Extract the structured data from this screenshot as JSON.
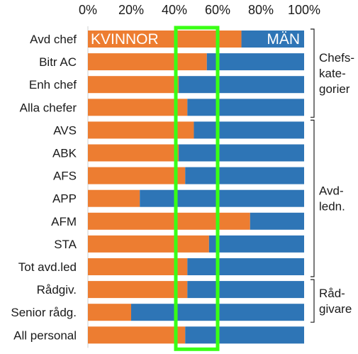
{
  "chart_data": {
    "type": "bar",
    "orientation": "horizontal",
    "stacked": true,
    "xlim": [
      0,
      100
    ],
    "x_ticks": [
      "0%",
      "20%",
      "40%",
      "60%",
      "80%",
      "100%"
    ],
    "x_tick_values": [
      0,
      20,
      40,
      60,
      80,
      100
    ],
    "categories": [
      "Avd chef",
      "Bitr AC",
      "Enh chef",
      "Alla chefer",
      "AVS",
      "ABK",
      "AFS",
      "APP",
      "AFM",
      "STA",
      "Tot avd.led",
      "Rådgiv.",
      "Senior rådg.",
      "All personal"
    ],
    "series": [
      {
        "name": "KVINNOR",
        "color": "#ED7D31",
        "values": [
          71,
          55,
          42,
          46,
          49,
          42,
          45,
          24,
          75,
          56,
          46,
          46,
          20,
          45
        ]
      },
      {
        "name": "MÄN",
        "color": "#2E75B6",
        "values": [
          29,
          45,
          58,
          54,
          51,
          58,
          55,
          76,
          25,
          44,
          54,
          54,
          80,
          55
        ]
      }
    ],
    "highlight_band": {
      "from": 40,
      "to": 60,
      "color": "#39FF14"
    },
    "groups": [
      {
        "lines": [
          "Chefs-",
          "kate-",
          "gorier"
        ],
        "from_index": 0,
        "to_index": 3
      },
      {
        "lines": [
          "Avd-",
          "ledn."
        ],
        "from_index": 4,
        "to_index": 10
      },
      {
        "lines": [
          "Råd-",
          "givare"
        ],
        "from_index": 11,
        "to_index": 12
      }
    ],
    "grid": false,
    "legend": "inside-first-bar"
  }
}
